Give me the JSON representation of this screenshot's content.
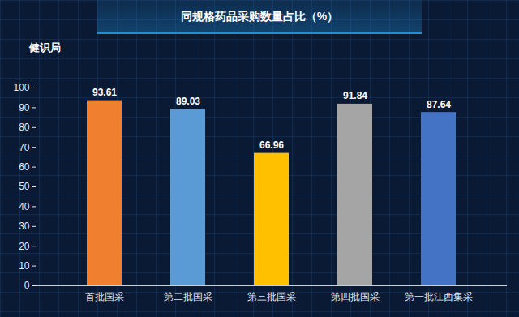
{
  "chart_data": {
    "type": "bar",
    "title": "同规格药品采购数量占比（%）",
    "annotations": [
      "健识局"
    ],
    "categories": [
      "首批国采",
      "第二批国采",
      "第三批国采",
      "第四批国采",
      "第一批江西集采"
    ],
    "values": [
      93.61,
      89.03,
      66.96,
      91.84,
      87.64
    ],
    "colors": [
      "#f08030",
      "#5b9bd5",
      "#ffc000",
      "#a5a5a5",
      "#4472c4"
    ],
    "ylim": [
      0,
      100
    ],
    "yticks": [
      0,
      10,
      20,
      30,
      40,
      50,
      60,
      70,
      80,
      90,
      100
    ],
    "grid": false,
    "data_labels": true
  }
}
